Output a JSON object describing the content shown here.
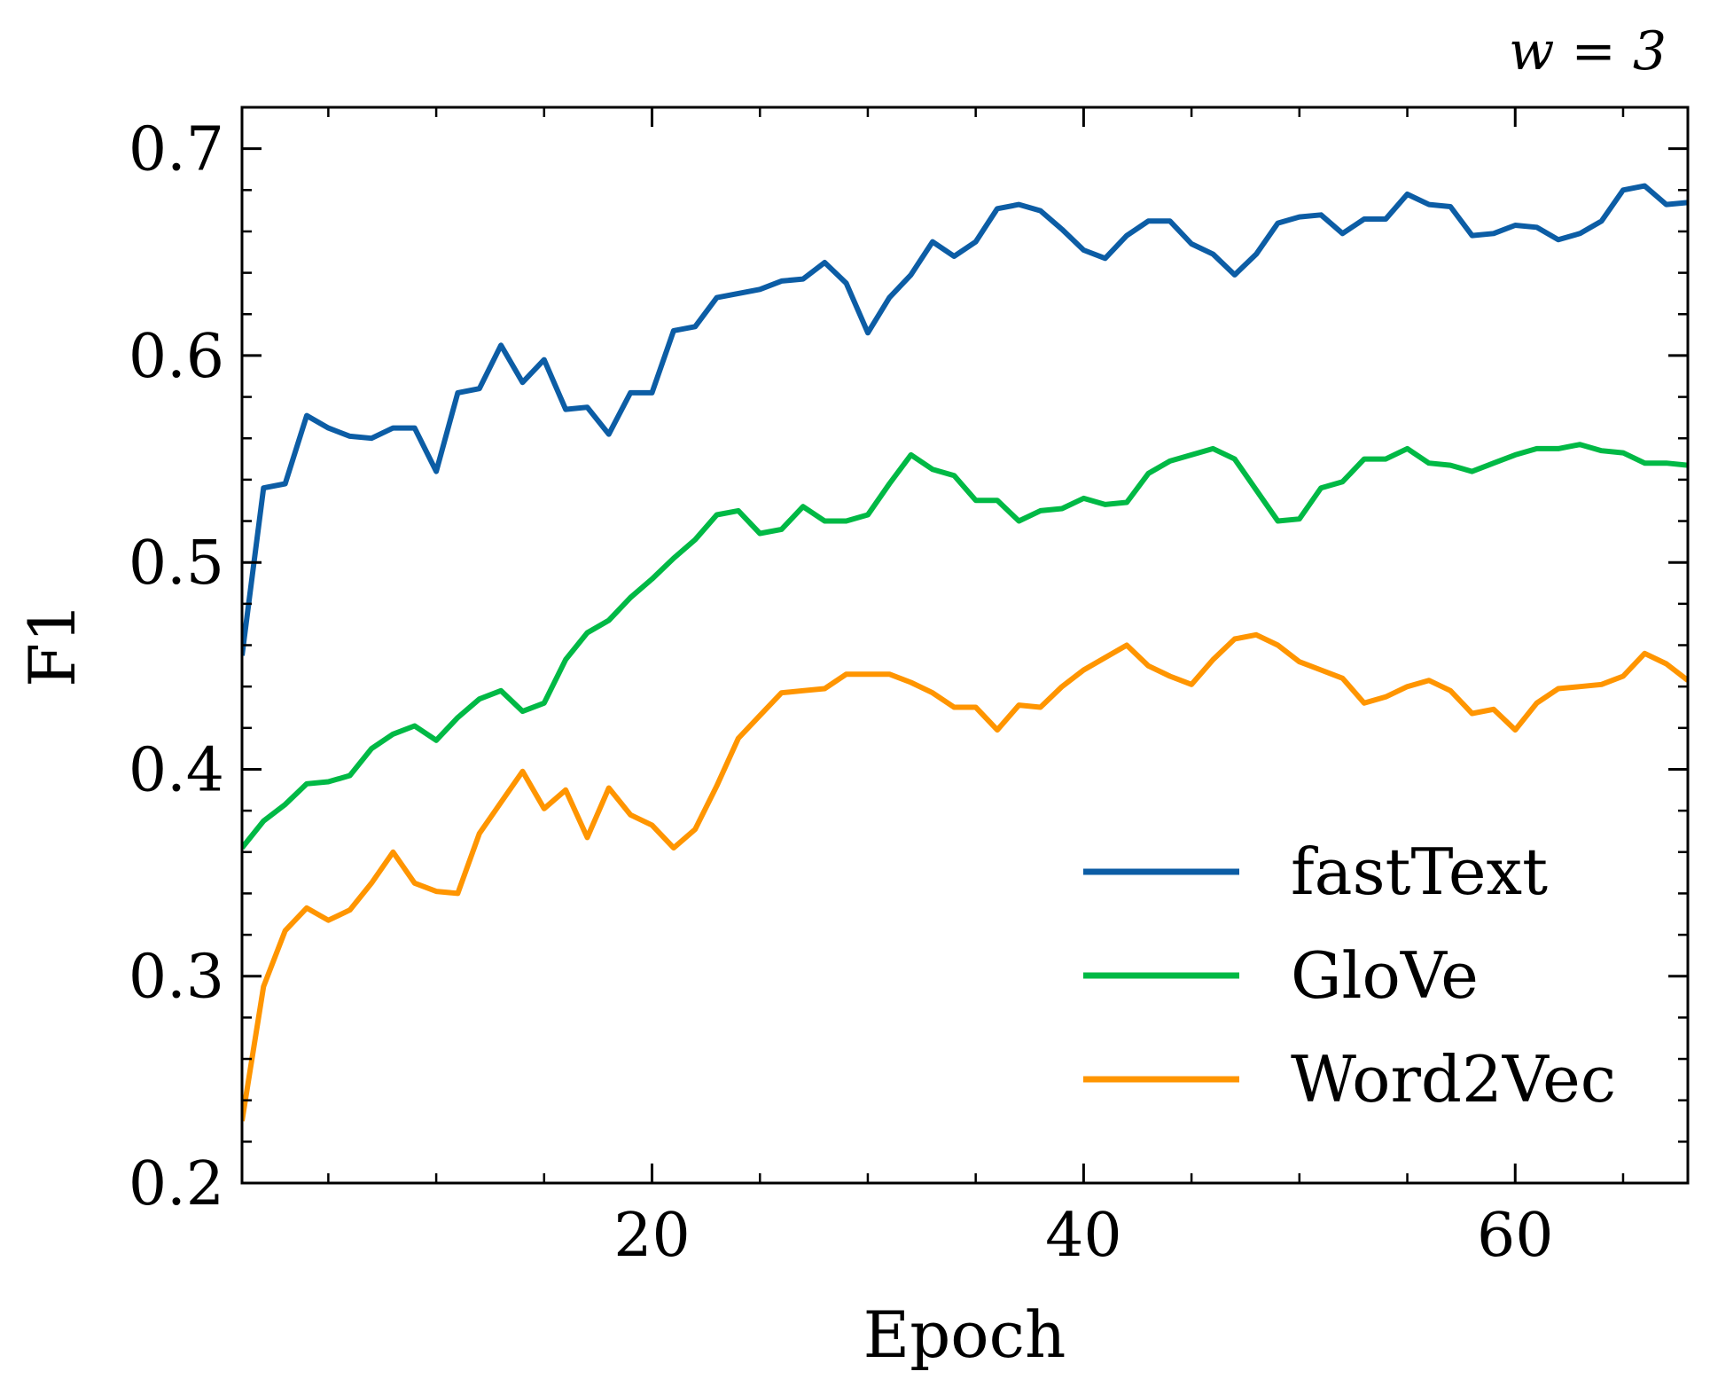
{
  "chart_data": {
    "type": "line",
    "annotation": "w = 3",
    "xlabel": "Epoch",
    "ylabel": "F1",
    "xlim": [
      1,
      68
    ],
    "ylim": [
      0.2,
      0.72
    ],
    "x_ticks": [
      20,
      40,
      60
    ],
    "x_tick_labels": [
      "20",
      "40",
      "60"
    ],
    "y_ticks": [
      0.2,
      0.3,
      0.4,
      0.5,
      0.6,
      0.7
    ],
    "y_tick_labels": [
      "0.2",
      "0.3",
      "0.4",
      "0.5",
      "0.6",
      "0.7"
    ],
    "grid": false,
    "legend_position": "bottom-right",
    "x": [
      1,
      2,
      3,
      4,
      5,
      6,
      7,
      8,
      9,
      10,
      11,
      12,
      13,
      14,
      15,
      16,
      17,
      18,
      19,
      20,
      21,
      22,
      23,
      24,
      25,
      26,
      27,
      28,
      29,
      30,
      31,
      32,
      33,
      34,
      35,
      36,
      37,
      38,
      39,
      40,
      41,
      42,
      43,
      44,
      45,
      46,
      47,
      48,
      49,
      50,
      51,
      52,
      53,
      54,
      55,
      56,
      57,
      58,
      59,
      60,
      61,
      62,
      63,
      64,
      65,
      66,
      67,
      68
    ],
    "series": [
      {
        "name": "fastText",
        "color": "#0C5DA5",
        "values": [
          0.455,
          0.536,
          0.538,
          0.571,
          0.565,
          0.561,
          0.56,
          0.565,
          0.565,
          0.544,
          0.582,
          0.584,
          0.605,
          0.587,
          0.598,
          0.574,
          0.575,
          0.562,
          0.582,
          0.582,
          0.612,
          0.614,
          0.628,
          0.63,
          0.632,
          0.636,
          0.637,
          0.645,
          0.635,
          0.611,
          0.628,
          0.639,
          0.655,
          0.648,
          0.655,
          0.671,
          0.673,
          0.67,
          0.661,
          0.651,
          0.647,
          0.658,
          0.665,
          0.665,
          0.654,
          0.649,
          0.639,
          0.649,
          0.664,
          0.667,
          0.668,
          0.659,
          0.666,
          0.666,
          0.678,
          0.673,
          0.672,
          0.658,
          0.659,
          0.663,
          0.662,
          0.656,
          0.659,
          0.665,
          0.68,
          0.682,
          0.673,
          0.674
        ]
      },
      {
        "name": "GloVe",
        "color": "#00B945",
        "values": [
          0.362,
          0.375,
          0.383,
          0.393,
          0.394,
          0.397,
          0.41,
          0.417,
          0.421,
          0.414,
          0.425,
          0.434,
          0.438,
          0.428,
          0.432,
          0.453,
          0.466,
          0.472,
          0.483,
          0.492,
          0.502,
          0.511,
          0.523,
          0.525,
          0.514,
          0.516,
          0.527,
          0.52,
          0.52,
          0.523,
          0.538,
          0.552,
          0.545,
          0.542,
          0.53,
          0.53,
          0.52,
          0.525,
          0.526,
          0.531,
          0.528,
          0.529,
          0.543,
          0.549,
          0.552,
          0.555,
          0.55,
          0.535,
          0.52,
          0.521,
          0.536,
          0.539,
          0.55,
          0.55,
          0.555,
          0.548,
          0.547,
          0.544,
          0.548,
          0.552,
          0.555,
          0.555,
          0.557,
          0.554,
          0.553,
          0.548,
          0.548,
          0.547
        ]
      },
      {
        "name": "Word2Vec",
        "color": "#FF9500",
        "values": [
          0.23,
          0.295,
          0.322,
          0.333,
          0.327,
          0.332,
          0.345,
          0.36,
          0.345,
          0.341,
          0.34,
          0.369,
          0.384,
          0.399,
          0.381,
          0.39,
          0.367,
          0.391,
          0.378,
          0.373,
          0.362,
          0.371,
          0.392,
          0.415,
          0.426,
          0.437,
          0.438,
          0.439,
          0.446,
          0.446,
          0.446,
          0.442,
          0.437,
          0.43,
          0.43,
          0.419,
          0.431,
          0.43,
          0.44,
          0.448,
          0.454,
          0.46,
          0.45,
          0.445,
          0.441,
          0.453,
          0.463,
          0.465,
          0.46,
          0.452,
          0.448,
          0.444,
          0.432,
          0.435,
          0.44,
          0.443,
          0.438,
          0.427,
          0.429,
          0.419,
          0.432,
          0.439,
          0.44,
          0.441,
          0.445,
          0.456,
          0.451,
          0.443
        ]
      }
    ]
  }
}
